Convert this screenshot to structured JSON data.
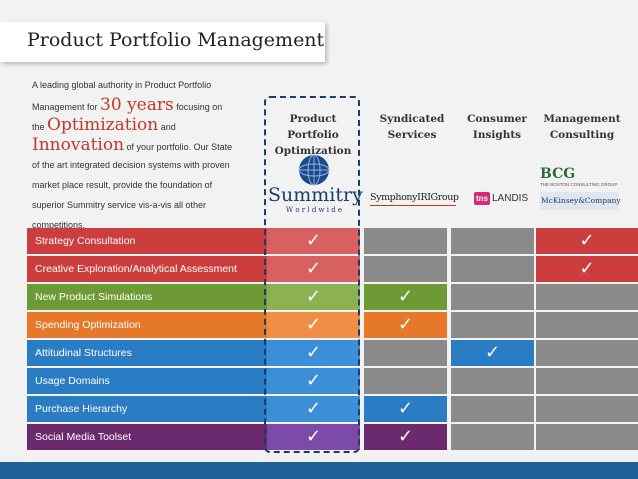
{
  "title": "Product Portfolio Management",
  "intro": {
    "l1": "A leading global authority in Product Portfolio",
    "l2a": "Management for ",
    "l2big": "30 years",
    "l2b": " focusing on",
    "l3a": "the ",
    "l3big": "Optimization",
    "l3b": " and",
    "l4big": "Innovation",
    "l4b": " of your portfolio. Our State",
    "l5": "of the art integrated decision systems with proven",
    "l6": "market place result, provide the foundation of",
    "l7": "superior Summitry service vis-a-vis all other",
    "l8": "competitions."
  },
  "columns": [
    {
      "l1": "Product Portfolio",
      "l2": "Optimization"
    },
    {
      "l1": "Syndicated",
      "l2": "Services"
    },
    {
      "l1": "Consumer",
      "l2": "Insights"
    },
    {
      "l1": "Management",
      "l2": "Consulting"
    }
  ],
  "logos": {
    "summitry": "Summitry",
    "summitry_sub": "W o r l d w i d e",
    "symphony": "SymphonyIRIGroup",
    "tns_a": "tns",
    "tns_b": "LANDIS",
    "bcg": "BCG",
    "bcg_sub": "THE BOSTON CONSULTING GROUP",
    "mck": "McKinsey&Company"
  },
  "check_glyph": "✓",
  "rows": [
    {
      "label": "Strategy Consultation",
      "color": "#cc3d3d",
      "checks": [
        true,
        false,
        false,
        true
      ]
    },
    {
      "label": "Creative Exploration/Analytical Assessment",
      "color": "#cc3d3d",
      "checks": [
        true,
        false,
        false,
        true
      ]
    },
    {
      "label": "New Product Simulations",
      "color": "#6e9a35",
      "checks": [
        true,
        true,
        false,
        false
      ]
    },
    {
      "label": "Spending Optimization",
      "color": "#e6782a",
      "checks": [
        true,
        true,
        false,
        false
      ]
    },
    {
      "label": "Attitudinal Structures",
      "color": "#2a7cc4",
      "checks": [
        true,
        false,
        true,
        false
      ]
    },
    {
      "label": "Usage Domains",
      "color": "#2a7cc4",
      "checks": [
        true,
        false,
        false,
        false
      ]
    },
    {
      "label": "Purchase Hierarchy",
      "color": "#2a7cc4",
      "checks": [
        true,
        true,
        false,
        false
      ]
    },
    {
      "label": "Social Media Toolset",
      "color": "#6b2a6e",
      "checks": [
        true,
        true,
        false,
        false
      ]
    }
  ],
  "colors": {
    "ppo_light": {
      "#cc3d3d": "#d86060",
      "#6e9a35": "#8cb153",
      "#e6782a": "#ee8f45",
      "#2a7cc4": "#3c8ed6",
      "#6b2a6e": "#7c4aa8"
    },
    "gray": "#8a8a8a"
  }
}
